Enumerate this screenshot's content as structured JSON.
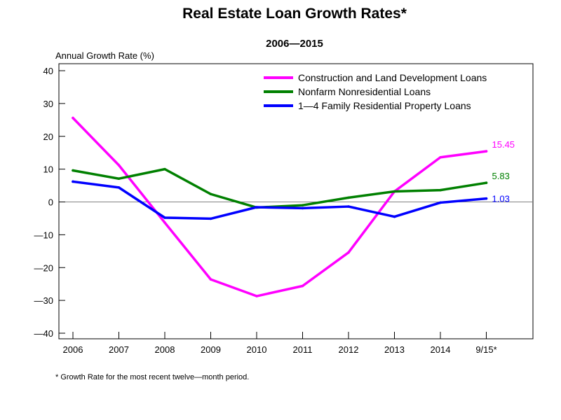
{
  "chart_data": {
    "type": "line",
    "title": "Real Estate Loan Growth Rates*",
    "subtitle": "2006—2015",
    "ylabel": "Annual Growth Rate (%)",
    "categories": [
      "2006",
      "2007",
      "2008",
      "2009",
      "2010",
      "2011",
      "2012",
      "2013",
      "2014",
      "9/15*"
    ],
    "ylim": [
      -40,
      40
    ],
    "yticks": [
      40,
      30,
      20,
      10,
      0,
      -10,
      -20,
      -30,
      -40
    ],
    "ytick_labels": [
      "40",
      "30",
      "20",
      "10",
      "0",
      "—10",
      "—20",
      "—30",
      "—40"
    ],
    "grid": false,
    "zero_line": true,
    "legend_position": "top-right",
    "series": [
      {
        "name": "Construction and Land Development Loans",
        "color": "#ff00ff",
        "values": [
          25.6,
          11.2,
          -6.3,
          -23.6,
          -28.7,
          -25.6,
          -15.4,
          3.2,
          13.6,
          15.45
        ],
        "end_label": "15.45"
      },
      {
        "name": "Nonfarm Nonresidential Loans",
        "color": "#008000",
        "values": [
          9.6,
          7.1,
          10.0,
          2.4,
          -1.7,
          -1.0,
          1.3,
          3.2,
          3.6,
          5.83
        ],
        "end_label": "5.83"
      },
      {
        "name": "1—4 Family Residential Property Loans",
        "color": "#0000ff",
        "values": [
          6.2,
          4.4,
          -4.8,
          -5.1,
          -1.6,
          -1.9,
          -1.4,
          -4.5,
          -0.2,
          1.03
        ],
        "end_label": "1.03"
      }
    ],
    "footnote": "* Growth Rate for the most recent twelve—month period."
  }
}
